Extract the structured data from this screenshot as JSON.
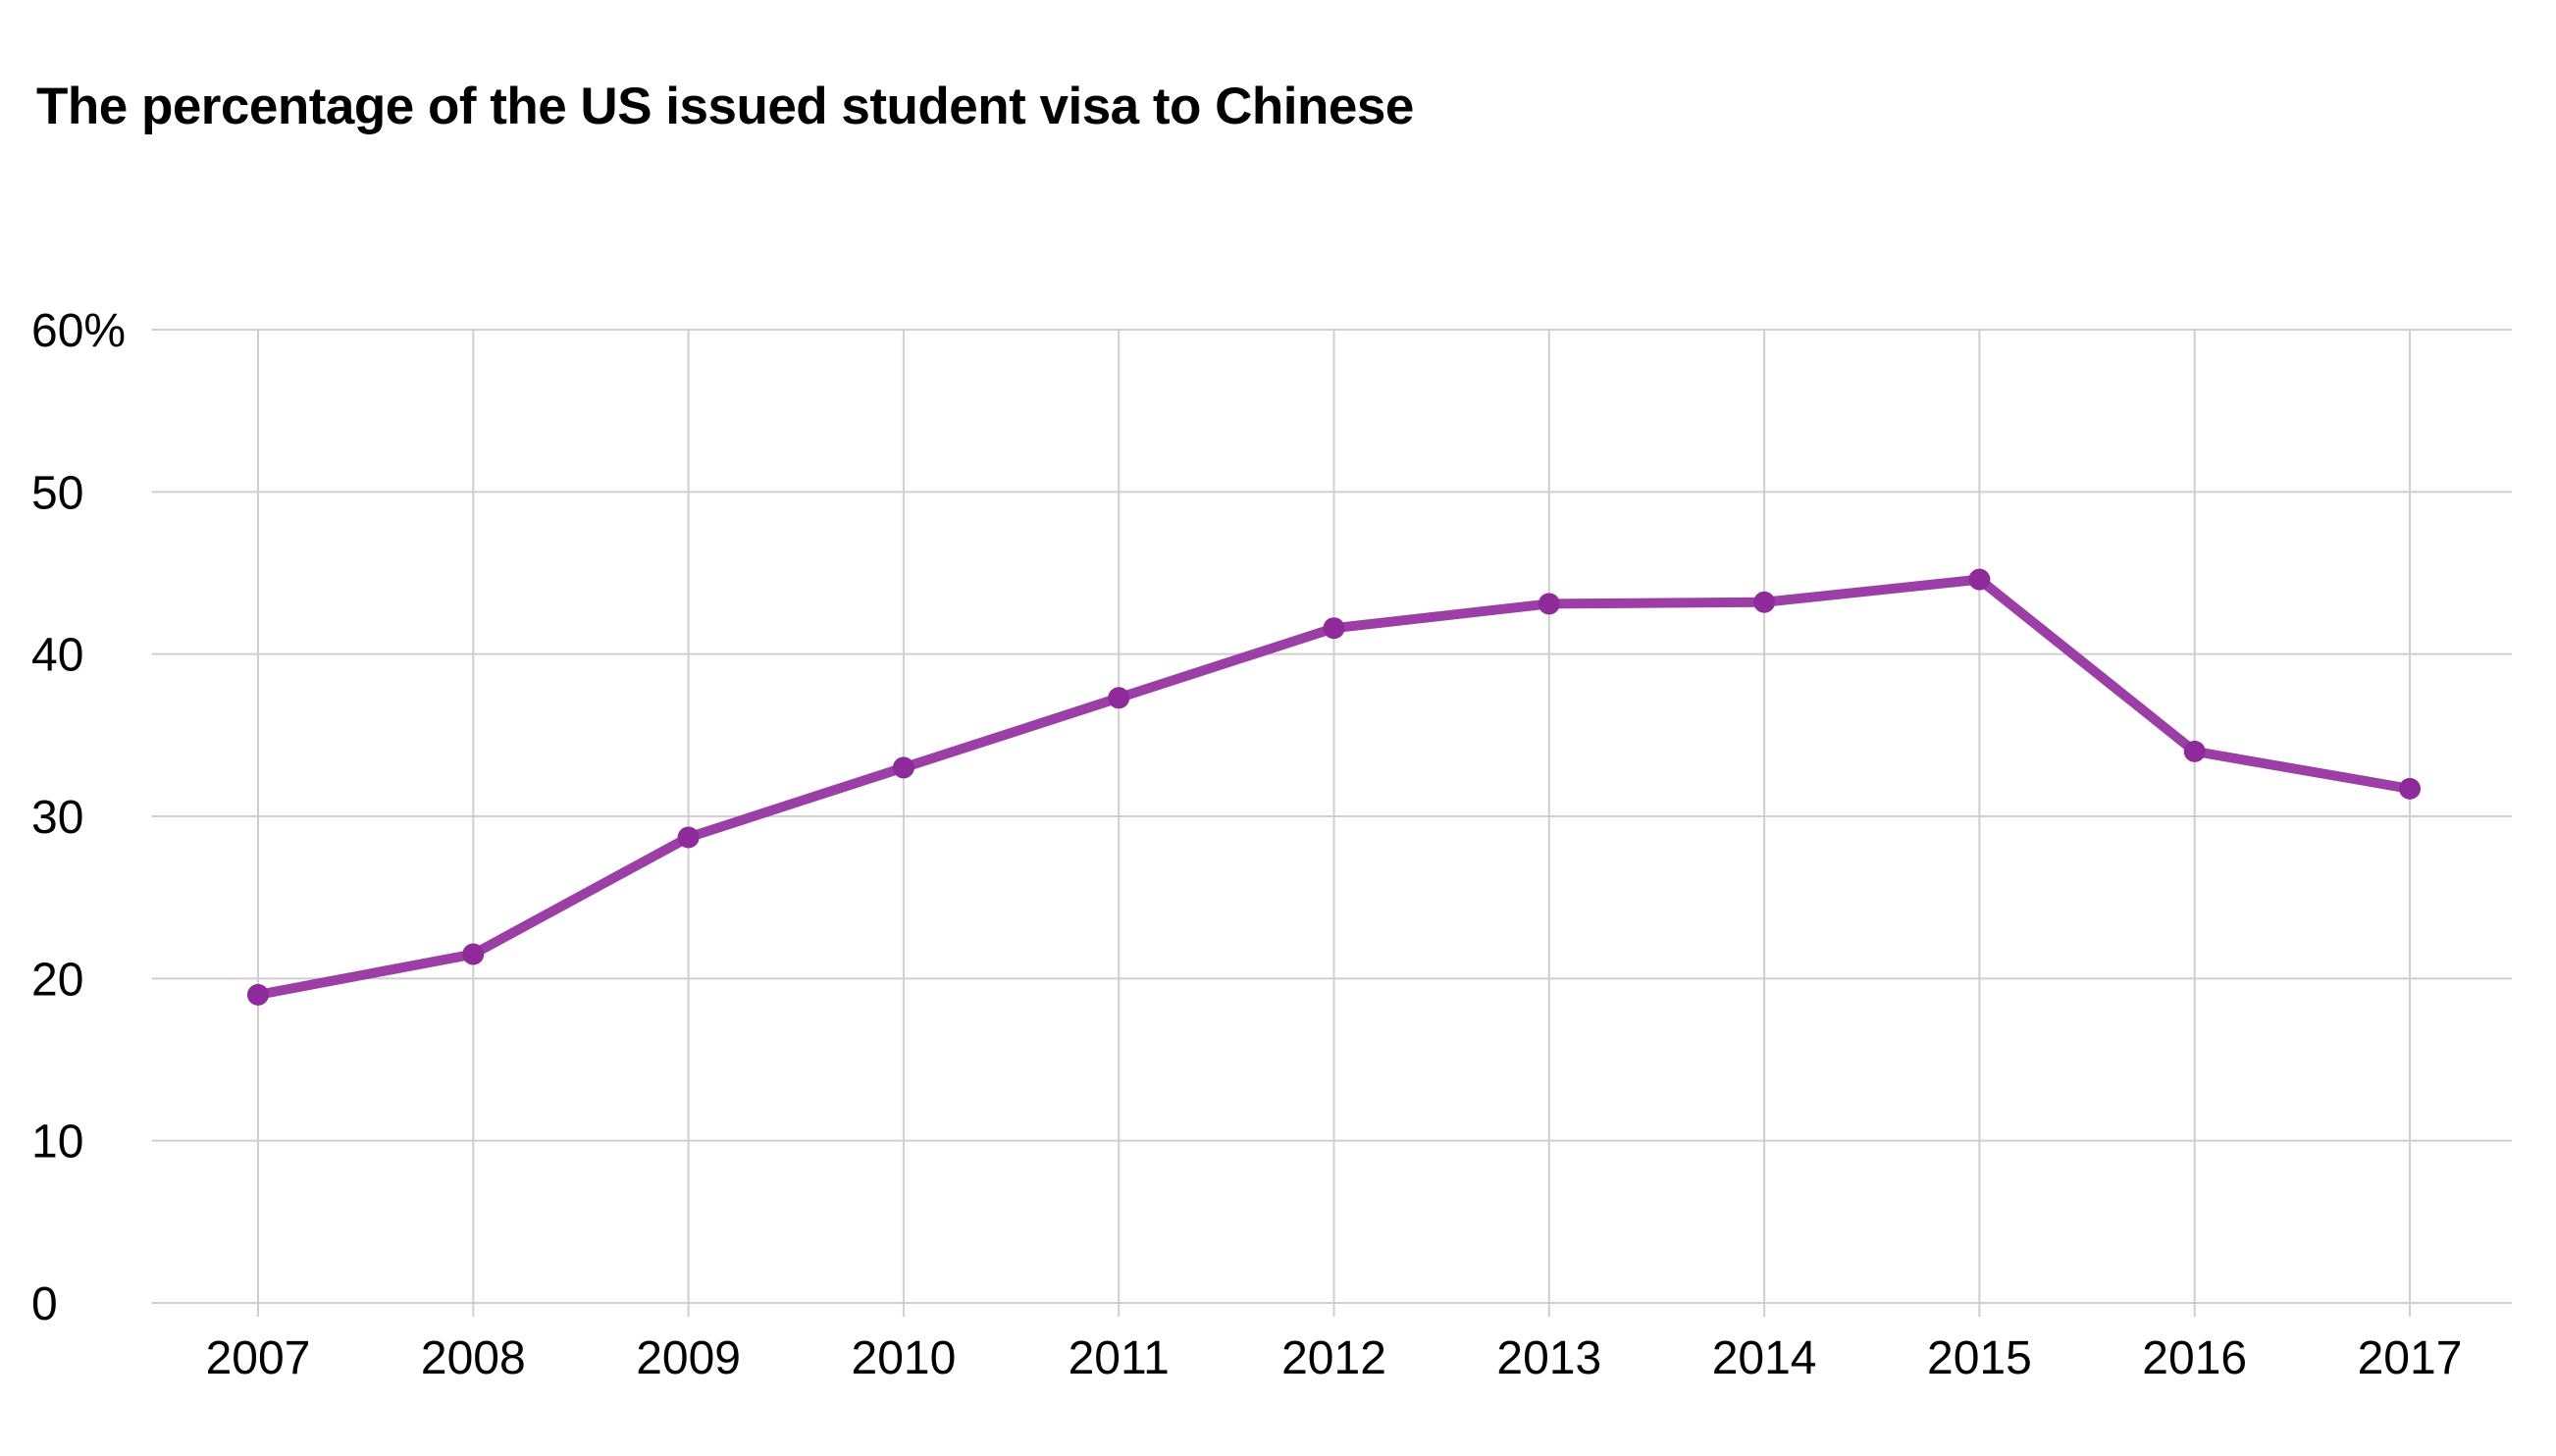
{
  "chart_data": {
    "type": "line",
    "title": "The percentage of the US issued student visa to Chinese",
    "xlabel": "",
    "ylabel": "",
    "categories": [
      "2007",
      "2008",
      "2009",
      "2010",
      "2011",
      "2012",
      "2013",
      "2014",
      "2015",
      "2016",
      "2017"
    ],
    "values": [
      19.0,
      21.5,
      28.7,
      33.0,
      37.3,
      41.6,
      43.1,
      43.2,
      44.6,
      34.0,
      31.7
    ],
    "ylim": [
      0,
      60
    ],
    "yticks": [
      0,
      10,
      20,
      30,
      40,
      50,
      60
    ],
    "ytick_labels": [
      "0",
      "10",
      "20",
      "30",
      "40",
      "50",
      "60%"
    ],
    "grid": true,
    "legend": "none",
    "line_color": "#9b3fa6",
    "marker_color": "#8e2a9a"
  }
}
